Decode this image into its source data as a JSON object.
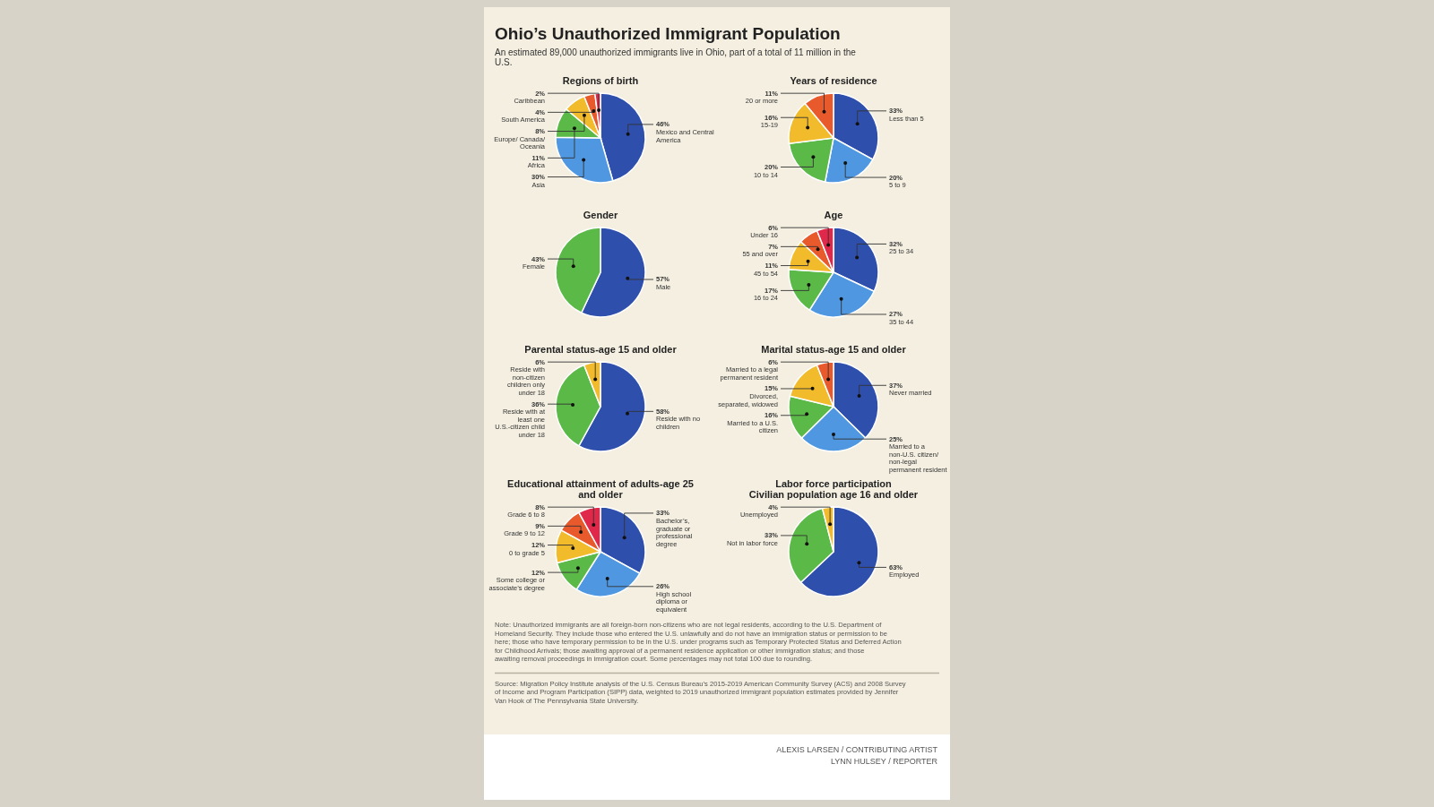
{
  "chart_data": [
    {
      "type": "other",
      "title": "Ohio’s Unauthorized Immigrant Population",
      "subtitle": "An estimated 89,000 unauthorized immigrants live in Ohio, part of a total of 11 million in the U.S."
    },
    {
      "type": "pie",
      "title": "Regions of birth",
      "categories": [
        "Mexico and Central America",
        "Asia",
        "Africa",
        "Europe/ Canada/ Oceania",
        "South America",
        "Caribbean"
      ],
      "values": [
        46,
        30,
        11,
        8,
        4,
        2
      ],
      "value_labels": [
        "46%",
        "30%",
        "11%",
        "8%",
        "4%",
        "2%"
      ],
      "colors": [
        "#2f4fad",
        "#4f97e0",
        "#5bb947",
        "#f2bb2c",
        "#e85a2c",
        "#e0284a"
      ]
    },
    {
      "type": "pie",
      "title": "Years of residence",
      "categories": [
        "Less than 5",
        "5 to 9",
        "10 to 14",
        "15-19",
        "20 or more"
      ],
      "values": [
        33,
        20,
        20,
        16,
        11
      ],
      "value_labels": [
        "33%",
        "20%",
        "20%",
        "16%",
        "11%"
      ],
      "colors": [
        "#2f4fad",
        "#4f97e0",
        "#5bb947",
        "#f2bb2c",
        "#e85a2c"
      ]
    },
    {
      "type": "pie",
      "title": "Gender",
      "categories": [
        "Male",
        "Female"
      ],
      "values": [
        57,
        43
      ],
      "value_labels": [
        "57%",
        "43%"
      ],
      "colors": [
        "#2f4fad",
        "#5bb947"
      ]
    },
    {
      "type": "pie",
      "title": "Age",
      "categories": [
        "25 to 34",
        "35 to 44",
        "16 to 24",
        "45 to 54",
        "55 and over",
        "Under 16"
      ],
      "values": [
        32,
        27,
        17,
        11,
        7,
        6
      ],
      "value_labels": [
        "32%",
        "27%",
        "17%",
        "11%",
        "7%",
        "6%"
      ],
      "colors": [
        "#2f4fad",
        "#4f97e0",
        "#5bb947",
        "#f2bb2c",
        "#e85a2c",
        "#e0284a"
      ]
    },
    {
      "type": "pie",
      "title": "Parental status-age 15 and older",
      "categories": [
        "Reside with no children",
        "Reside with at least one U.S.-citizen child under 18",
        "Reside with non-citizen children only under 18"
      ],
      "values": [
        58,
        36,
        6
      ],
      "value_labels": [
        "58%",
        "36%",
        "6%"
      ],
      "colors": [
        "#2f4fad",
        "#5bb947",
        "#f2bb2c"
      ]
    },
    {
      "type": "pie",
      "title": "Marital status-age 15 and older",
      "categories": [
        "Never married",
        "Married to a non-U.S. citizen/ non-legal permanent resident",
        "Married to a U.S. citizen",
        "Divorced, separated, widowed",
        "Married to a legal permanent resident"
      ],
      "values": [
        37,
        25,
        16,
        15,
        6
      ],
      "value_labels": [
        "37%",
        "25%",
        "16%",
        "15%",
        "6%"
      ],
      "colors": [
        "#2f4fad",
        "#4f97e0",
        "#5bb947",
        "#f2bb2c",
        "#e85a2c"
      ]
    },
    {
      "type": "pie",
      "title": "Educational attainment of adults-age 25 and older",
      "categories": [
        "Bachelor’s, graduate or professional degree",
        "High school diploma or equivalent",
        "Some college or associate’s degree",
        "0 to grade 5",
        "Grade 9 to 12",
        "Grade 6 to 8"
      ],
      "values": [
        33,
        26,
        12,
        12,
        9,
        8
      ],
      "value_labels": [
        "33%",
        "26%",
        "12%",
        "12%",
        "9%",
        "8%"
      ],
      "colors": [
        "#2f4fad",
        "#4f97e0",
        "#5bb947",
        "#f2bb2c",
        "#e85a2c",
        "#e0284a"
      ]
    },
    {
      "type": "pie",
      "title": "Labor force participation",
      "subtitle": "Civilian population age 16 and older",
      "categories": [
        "Employed",
        "Not in labor force",
        "Unemployed"
      ],
      "values": [
        63,
        33,
        4
      ],
      "value_labels": [
        "63%",
        "33%",
        "4%"
      ],
      "colors": [
        "#2f4fad",
        "#5bb947",
        "#f2bb2c"
      ]
    },
    {
      "type": "other",
      "annotations": [
        "Note: Unauthorized immigrants are all foreign-born non-citizens who are not legal residents, according to the U.S. Department of Homeland Security. They include those who entered the U.S. unlawfully and do not have an immigration status or permission to be here; those who have temporary permission to be in the U.S. under programs such as Temporary Protected Status and Deferred Action for Childhood Arrivals; those awaiting approval of a permanent residence application or other immigration status; and those awaiting removal proceedings in immigration court. Some percentages may not total 100 due to rounding.",
        "Source: Migration Policy Institute analysis of the U.S. Census Bureau’s 2015-2019 American Community Survey (ACS) and 2008 Survey of Income and Program Participation (SIPP) data, weighted to 2019 unauthorized immigrant population estimates provided by Jennifer Van Hook of The Pennsylvania State University."
      ]
    },
    {
      "type": "other",
      "annotations": [
        "ALEXIS LARSEN / CONTRIBUTING ARTIST",
        "LYNN HULSEY / REPORTER"
      ]
    }
  ]
}
